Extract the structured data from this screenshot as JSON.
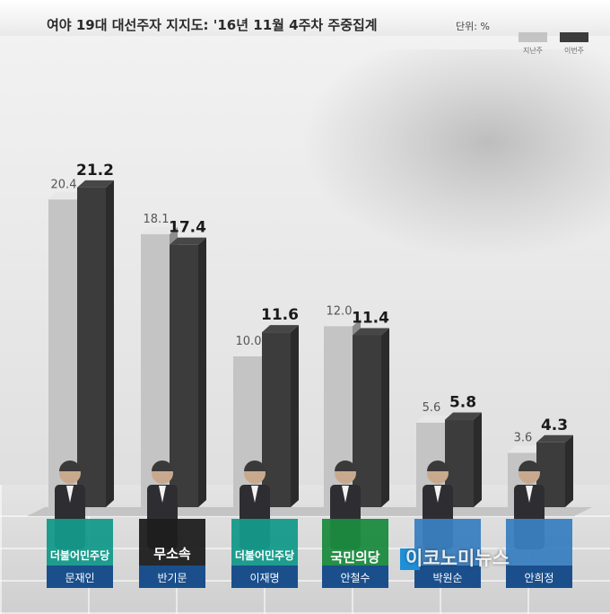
{
  "title": "여야 19대 대선주자 지지도: '16년 11월 4주차 주중집계",
  "unit": "단위: %",
  "colors": {
    "previous": "#c4c4c4",
    "current": "#3c3c3c",
    "party_democratic": "#14998a",
    "party_independent": "#1e1e1e",
    "party_peoples": "#1b8a3f",
    "name_box": "#1a4f8c"
  },
  "chart_data": {
    "type": "bar",
    "categories": [
      "문재인",
      "반기문",
      "이재명",
      "안철수",
      "박원순",
      "안희정"
    ],
    "series": [
      {
        "name": "지난주",
        "values": [
          20.4,
          18.1,
          10.0,
          12.0,
          5.6,
          3.6
        ]
      },
      {
        "name": "이번주",
        "values": [
          21.2,
          17.4,
          11.6,
          11.4,
          5.8,
          4.3
        ]
      }
    ],
    "data_labels_previous": [
      "20.4",
      "18.1",
      "10.0",
      "12.0",
      "5.6",
      "3.6"
    ],
    "data_labels_current": [
      "21.2",
      "17.4",
      "11.6",
      "11.4",
      "5.8",
      "4.3"
    ],
    "parties": [
      "더불어민주당",
      "무소속",
      "더불어민주당",
      "국민의당",
      "",
      ""
    ],
    "party_colors": [
      "#14998a",
      "#1e1e1e",
      "#14998a",
      "#1b8a3f",
      "#14998a",
      "#14998a"
    ],
    "ylim": [
      0,
      25
    ],
    "grid": false,
    "legend": "top-right",
    "title": "여야 19대 대선주자 지지도: '16년 11월 4주차 주중집계",
    "xlabel": "",
    "ylabel": ""
  },
  "watermark": "이코노미뉴스"
}
